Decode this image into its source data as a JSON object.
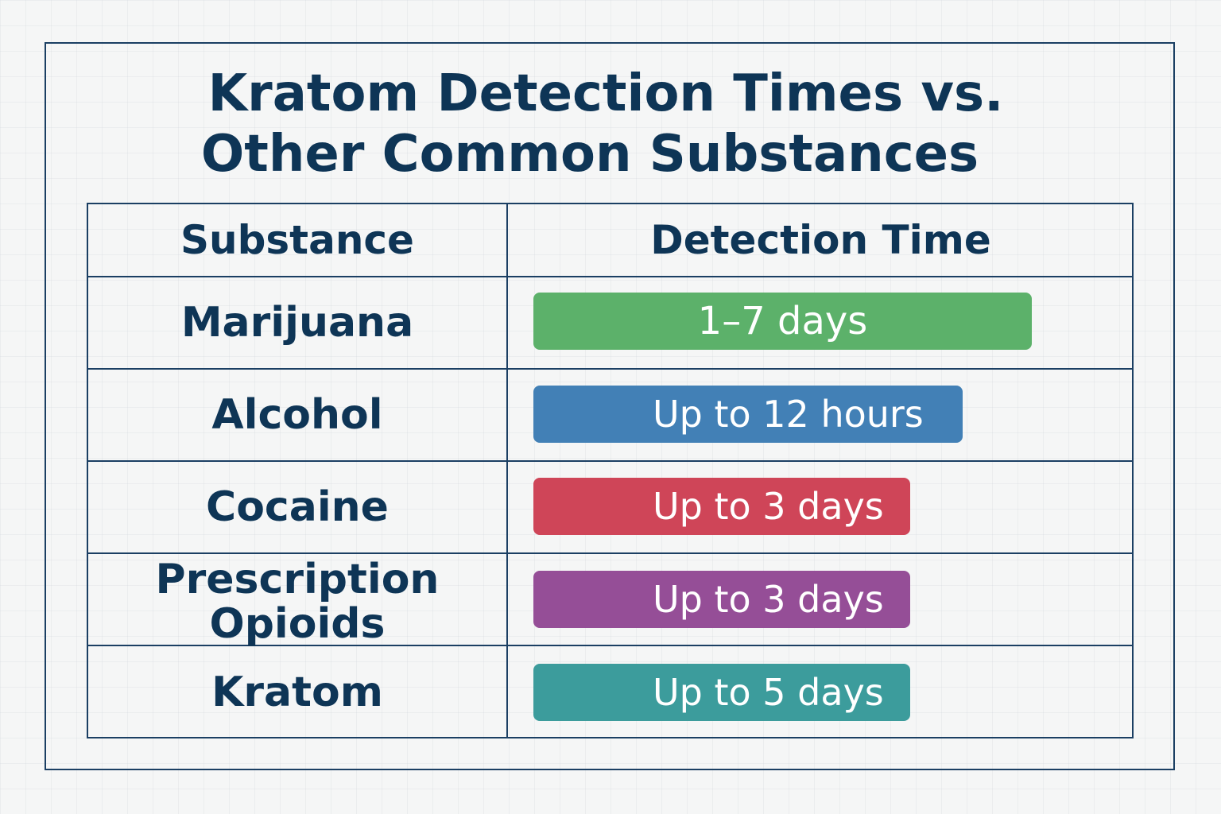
{
  "chart_data": {
    "type": "table",
    "title": "Kratom Detection Times vs. Other Common Substances",
    "columns": [
      "Substance",
      "Detection Time"
    ],
    "rows": [
      {
        "substance": "Marijuana",
        "detection_time": "1–7 days",
        "color": "#5cb16a"
      },
      {
        "substance": "Alcohol",
        "detection_time": "Up to 12 hours",
        "color": "#4280b6"
      },
      {
        "substance": "Cocaine",
        "detection_time": "Up to 3 days",
        "color": "#cf4558"
      },
      {
        "substance": "Prescription Opioids",
        "detection_time": "Up to 3 days",
        "color": "#954e97"
      },
      {
        "substance": "Kratom",
        "detection_time": "Up to 5 days",
        "color": "#3c9c9c"
      }
    ]
  },
  "title": {
    "line1": "Kratom Detection Times vs.",
    "line2": "Other Common Substances"
  },
  "headers": {
    "substance": "Substance",
    "detection_time": "Detection Time"
  },
  "rows": [
    {
      "substance": "Marijuana",
      "detection_time": "1–7 days",
      "color": "#5cb16a"
    },
    {
      "substance": "Alcohol",
      "detection_time": "Up to 12 hours",
      "color": "#4280b6"
    },
    {
      "substance": "Cocaine",
      "detection_time": "Up to 3 days",
      "color": "#cf4558"
    },
    {
      "substance": "Prescription Opioids",
      "detection_time": "Up to 3 days",
      "color": "#954e97"
    },
    {
      "substance": "Kratom",
      "detection_time": "Up to 5 days",
      "color": "#3c9c9c"
    }
  ],
  "colors": {
    "text": "#0e3556",
    "border": "#1b3f63",
    "background": "#f5f6f6"
  }
}
